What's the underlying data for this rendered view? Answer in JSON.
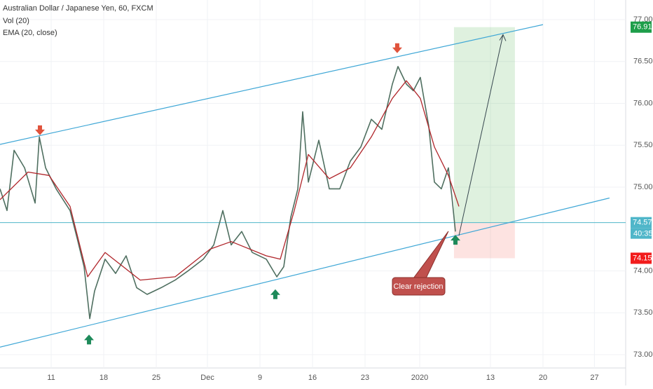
{
  "chart_data": {
    "type": "line",
    "title": "Australian Dollar / Japanese Yen, 60, FXCM",
    "indicators": [
      "Vol (20)",
      "EMA (20, close)"
    ],
    "xlim": [
      -4.87,
      54.67
    ],
    "xticks": [
      {
        "value": 0,
        "label": "11"
      },
      {
        "value": 5,
        "label": "18"
      },
      {
        "value": 10,
        "label": "25"
      },
      {
        "value": 14.87,
        "label": "Dec"
      },
      {
        "value": 19.87,
        "label": "9"
      },
      {
        "value": 24.87,
        "label": "16"
      },
      {
        "value": 29.87,
        "label": "23"
      },
      {
        "value": 35.07,
        "label": "2020"
      },
      {
        "value": 41.8,
        "label": "13"
      },
      {
        "value": 46.8,
        "label": "20"
      },
      {
        "value": 51.7,
        "label": "27"
      }
    ],
    "ylim": [
      72.841,
      77.234
    ],
    "yticks": [
      {
        "value": 73,
        "label": "73.000"
      },
      {
        "value": 73.5,
        "label": "73.500"
      },
      {
        "value": 74,
        "label": "74.000"
      },
      {
        "value": 75,
        "label": "75.000"
      },
      {
        "value": 75.5,
        "label": "75.500"
      },
      {
        "value": 76,
        "label": "76.000"
      },
      {
        "value": 76.5,
        "label": "76.500"
      },
      {
        "value": 77,
        "label": "77.000"
      }
    ],
    "series": [
      {
        "name": "Price",
        "color": "#4f6f60",
        "x": [
          -4.87,
          -4.2,
          -3.53,
          -2.53,
          -1.53,
          -1.13,
          -0.53,
          0.47,
          1.8,
          2.47,
          3.13,
          3.67,
          4.13,
          5.13,
          6.13,
          7.13,
          8.13,
          9.13,
          10.47,
          11.8,
          13.13,
          14.47,
          15.47,
          16.33,
          17.13,
          18.13,
          19.13,
          20.47,
          21.47,
          22.13,
          22.8,
          23.47,
          23.93,
          24.47,
          25.47,
          26.47,
          27.47,
          28.47,
          29.47,
          30.47,
          31.47,
          32.47,
          33,
          33.8,
          34.47,
          35.13,
          35.47,
          35.93,
          36.47,
          37.13,
          37.8,
          38.13,
          38.47
        ],
        "values": [
          74.98,
          74.72,
          75.44,
          75.23,
          74.81,
          75.6,
          75.23,
          74.98,
          74.72,
          74.39,
          74.05,
          73.43,
          73.76,
          74.14,
          73.97,
          74.18,
          73.8,
          73.72,
          73.8,
          73.89,
          74.01,
          74.14,
          74.31,
          74.72,
          74.31,
          74.47,
          74.22,
          74.14,
          73.93,
          74.05,
          74.64,
          74.98,
          75.9,
          75.06,
          75.56,
          74.98,
          74.98,
          75.31,
          75.48,
          75.81,
          75.69,
          76.23,
          76.44,
          76.23,
          76.15,
          76.31,
          76.06,
          75.73,
          75.06,
          74.98,
          75.23,
          74.89,
          74.47
        ]
      },
      {
        "name": "EMA (20, close)",
        "color": "#b0262b",
        "x": [
          -4.87,
          -2.2,
          -0.2,
          1.8,
          3.47,
          5.13,
          8.47,
          11.8,
          15.13,
          17.13,
          20.47,
          21.8,
          23.13,
          24.47,
          26.47,
          28.47,
          30.47,
          32.47,
          33.8,
          35.13,
          36.47,
          37.8,
          38.8
        ],
        "values": [
          74.85,
          75.18,
          75.14,
          74.77,
          73.93,
          74.22,
          73.89,
          73.93,
          74.26,
          74.35,
          74.18,
          74.14,
          74.72,
          75.39,
          75.1,
          75.23,
          75.6,
          76.06,
          76.27,
          76.06,
          75.48,
          75.14,
          74.77
        ]
      }
    ],
    "trendlines": [
      {
        "x": [
          -4.87,
          46.8
        ],
        "values": [
          75.51,
          76.94
        ]
      },
      {
        "x": [
          -4.87,
          53.13
        ],
        "values": [
          73.09,
          74.87
        ]
      }
    ],
    "position": {
      "x": [
        38.33,
        44.13
      ],
      "target": {
        "value": 76.91,
        "label": "76.910"
      },
      "entry": {
        "value": 74.576,
        "label": "74.576"
      },
      "stop": {
        "value": 74.151,
        "label": "74.151"
      },
      "timer": "40:35"
    },
    "projection": {
      "x": [
        38.8,
        43.0
      ],
      "values": [
        74.42,
        76.82
      ]
    },
    "sell_markers": {
      "x": [
        -1.07,
        32.93
      ],
      "values": [
        75.62,
        76.6
      ]
    },
    "buy_markers": {
      "x": [
        3.6,
        21.33,
        38.47
      ],
      "values": [
        73.24,
        73.78,
        74.43
      ]
    },
    "callout": {
      "text": "Clear rejection",
      "x": 37.8,
      "value": 74.473
    }
  }
}
